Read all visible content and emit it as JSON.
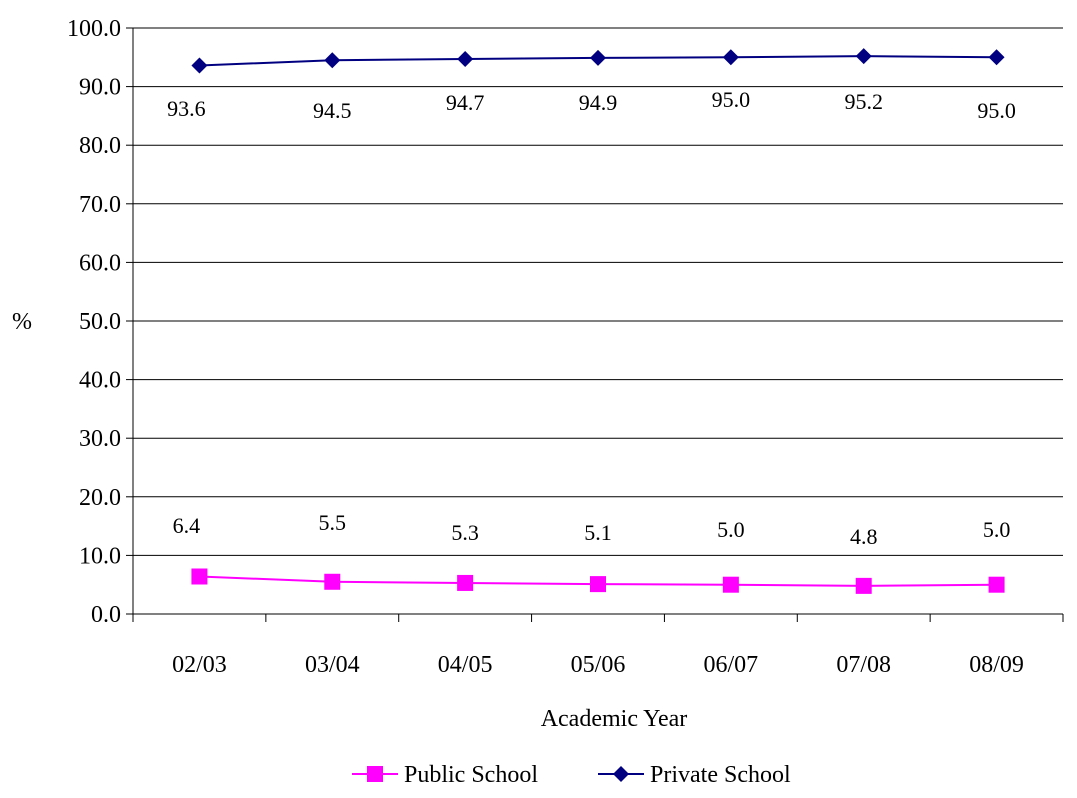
{
  "chart_data": {
    "type": "line",
    "title": "",
    "xlabel": "Academic Year",
    "ylabel": "%",
    "ylim": [
      0,
      100
    ],
    "yticks": [
      "0.0",
      "10.0",
      "20.0",
      "30.0",
      "40.0",
      "50.0",
      "60.0",
      "70.0",
      "80.0",
      "90.0",
      "100.0"
    ],
    "grid": true,
    "legend_position": "bottom",
    "categories": [
      "02/03",
      "03/04",
      "04/05",
      "05/06",
      "06/07",
      "07/08",
      "08/09"
    ],
    "series": [
      {
        "name": "Public School",
        "values": [
          6.4,
          5.5,
          5.3,
          5.1,
          5.0,
          4.8,
          5.0
        ],
        "labels": [
          "6.4",
          "5.5",
          "5.3",
          "5.1",
          "5.0",
          "4.8",
          "5.0"
        ],
        "color": "#ff00ff",
        "marker": "square"
      },
      {
        "name": "Private School",
        "values": [
          93.6,
          94.5,
          94.7,
          94.9,
          95.0,
          95.2,
          95.0
        ],
        "labels": [
          "93.6",
          "94.5",
          "94.7",
          "94.9",
          "95.0",
          "95.2",
          "95.0"
        ],
        "color": "#000080",
        "marker": "diamond"
      }
    ]
  }
}
